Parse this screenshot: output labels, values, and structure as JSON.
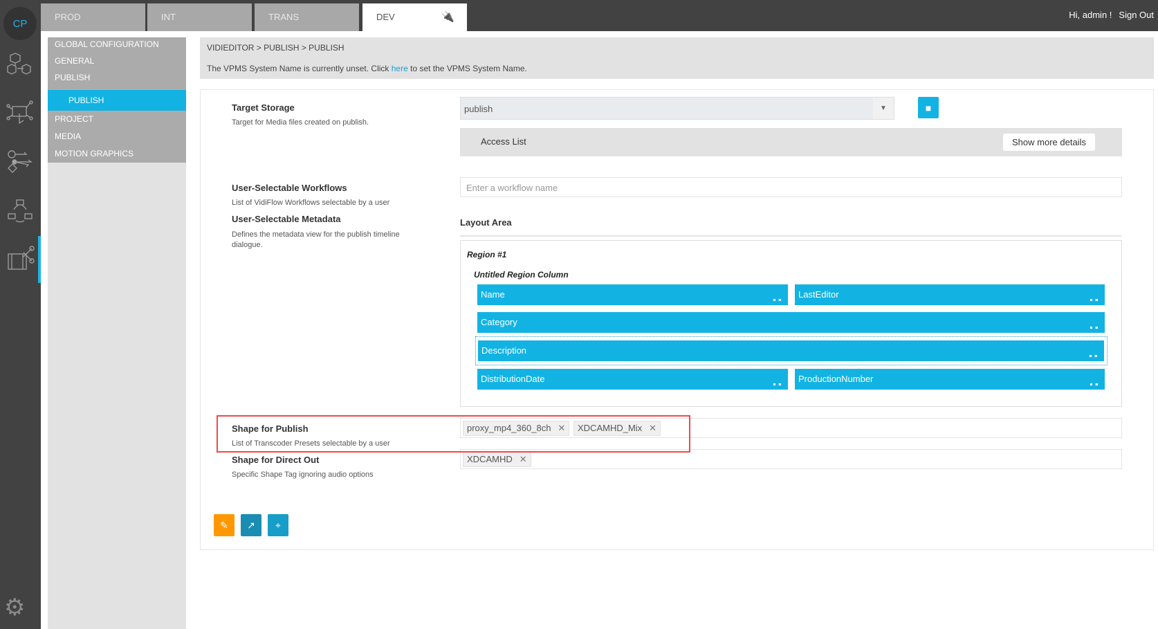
{
  "app": {
    "logo": "CP",
    "greeting": "Hi, admin !",
    "sign_out": "Sign Out"
  },
  "rail_icons": [
    "cubes-icon",
    "touch-network-icon",
    "workflow-icon",
    "cycle-icon",
    "video-edit-icon",
    "settings-gears-icon"
  ],
  "tabs": [
    {
      "label": "PROD"
    },
    {
      "label": "INT"
    },
    {
      "label": "TRANS"
    },
    {
      "label": "DEV",
      "active": true,
      "icon": "plug-icon"
    }
  ],
  "sidebar": {
    "items": [
      {
        "label": "GLOBAL CONFIGURATION"
      },
      {
        "label": "GENERAL"
      },
      {
        "label": "PUBLISH"
      },
      {
        "label": "PUBLISH",
        "active": true
      },
      {
        "label": "PROJECT"
      },
      {
        "label": "MEDIA"
      },
      {
        "label": "MOTION GRAPHICS"
      }
    ]
  },
  "breadcrumb": "VIDIEDITOR > PUBLISH > PUBLISH",
  "notice": {
    "before": "The VPMS System Name is currently unset. Click ",
    "link": "here",
    "after": " to set the VPMS System Name."
  },
  "form": {
    "target_storage": {
      "label": "Target Storage",
      "desc": "Target for Media files created on publish.",
      "value": "publish",
      "access_list": "Access List",
      "show_more": "Show more details"
    },
    "workflows": {
      "label": "User-Selectable Workflows",
      "desc": "List of VidiFlow Workflows selectable by a user",
      "placeholder": "Enter a workflow name"
    },
    "metadata": {
      "label": "User-Selectable Metadata",
      "desc": "Defines the metadata view for the publish timeline dialogue.",
      "layout_area": "Layout Area",
      "region": "Region #1",
      "column": "Untitled Region Column",
      "fields": [
        "Name",
        "LastEditor",
        "Category",
        "Description",
        "DistributionDate",
        "ProductionNumber"
      ]
    },
    "shape_publish": {
      "label": "Shape for Publish",
      "desc": "List of Transcoder Presets selectable by a user",
      "tags": [
        "proxy_mp4_360_8ch",
        "XDCAMHD_Mix"
      ]
    },
    "shape_direct": {
      "label": "Shape for Direct Out",
      "desc": "Specific Shape Tag ignoring audio options",
      "tags": [
        "XDCAMHD"
      ]
    }
  },
  "colors": {
    "accent": "#12b3e3",
    "dark": "#424242",
    "edit": "#ff9800",
    "highlight": "#f0474a"
  },
  "actions": [
    "edit-icon",
    "open-external-icon",
    "binoculars-icon"
  ]
}
